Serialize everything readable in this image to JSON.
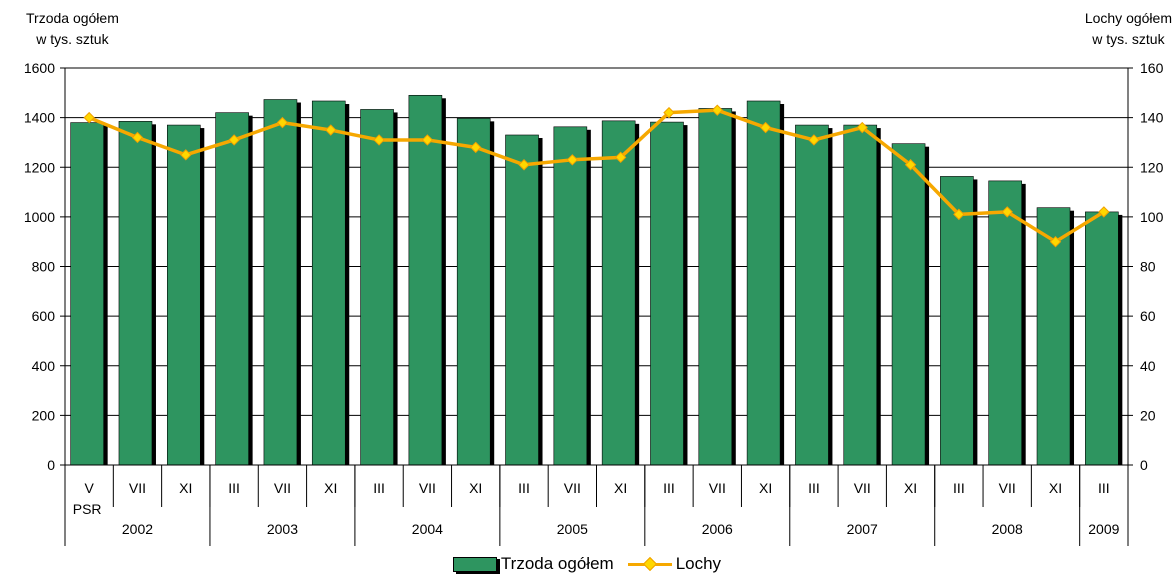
{
  "titles": {
    "left": [
      "Trzoda ogółem",
      "w tys. sztuk"
    ],
    "right": [
      "Lochy ogółem",
      "w tys. sztuk"
    ]
  },
  "legend": {
    "bars": "Trzoda ogółem",
    "line": "Lochy"
  },
  "colors": {
    "bar": "#2e9560",
    "bar_shadow": "#000000",
    "line": "#f6a800",
    "marker": "#ffd700",
    "grid": "#000000"
  },
  "chart_data": {
    "type": "bar",
    "categories": [
      "V",
      "VII",
      "XI",
      "III",
      "VII",
      "XI",
      "III",
      "VII",
      "XI",
      "III",
      "VII",
      "XI",
      "III",
      "VII",
      "XI",
      "III",
      "VII",
      "XI",
      "III",
      "VII",
      "XI",
      "III"
    ],
    "category_sublabels": {
      "0": "PSR"
    },
    "years": [
      {
        "label": "2002",
        "count": 3
      },
      {
        "label": "2003",
        "count": 3
      },
      {
        "label": "2004",
        "count": 3
      },
      {
        "label": "2005",
        "count": 3
      },
      {
        "label": "2006",
        "count": 3
      },
      {
        "label": "2007",
        "count": 3
      },
      {
        "label": "2008",
        "count": 3
      },
      {
        "label": "2009",
        "count": 1
      }
    ],
    "series": [
      {
        "name": "Trzoda ogółem",
        "type": "bar",
        "axis": "left",
        "values": [
          1380,
          1385,
          1370,
          1420,
          1473,
          1467,
          1433,
          1490,
          1397,
          1330,
          1363,
          1387,
          1382,
          1437,
          1467,
          1370,
          1370,
          1295,
          1163,
          1145,
          1037,
          1020
        ]
      },
      {
        "name": "Lochy",
        "type": "line",
        "axis": "right",
        "values": [
          140,
          132,
          125,
          131,
          138,
          135,
          131,
          131,
          128,
          121,
          123,
          124,
          142,
          143,
          136,
          131,
          136,
          121,
          101,
          102,
          90,
          102
        ]
      }
    ],
    "y_left": {
      "min": 0,
      "max": 1600,
      "ticks": [
        0,
        200,
        400,
        600,
        800,
        1000,
        1200,
        1400,
        1600
      ]
    },
    "y_right": {
      "min": 0,
      "max": 160,
      "ticks": [
        0,
        20,
        40,
        60,
        80,
        100,
        120,
        140,
        160
      ]
    },
    "grid": true,
    "legend_position": "bottom"
  }
}
